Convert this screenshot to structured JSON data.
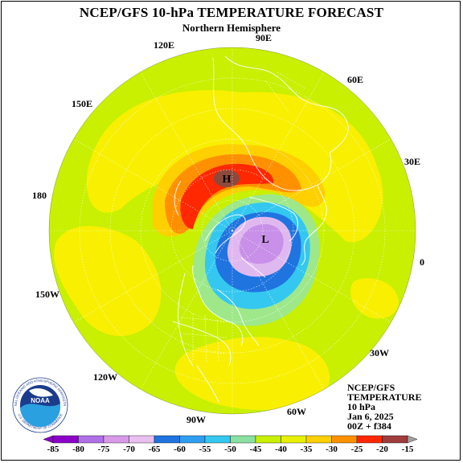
{
  "title": "NCEP/GFS 10-hPa TEMPERATURE FORECAST",
  "subtitle": "Northern Hemisphere",
  "longitude_labels": [
    {
      "id": "90E",
      "text": "90E"
    },
    {
      "id": "120E",
      "text": "120E"
    },
    {
      "id": "60E",
      "text": "60E"
    },
    {
      "id": "150E",
      "text": "150E"
    },
    {
      "id": "30E",
      "text": "30E"
    },
    {
      "id": "180",
      "text": "180"
    },
    {
      "id": "0",
      "text": "0"
    },
    {
      "id": "150W",
      "text": "150W"
    },
    {
      "id": "30W",
      "text": "30W"
    },
    {
      "id": "120W",
      "text": "120W"
    },
    {
      "id": "90W",
      "text": "90W"
    },
    {
      "id": "60W",
      "text": "60W"
    }
  ],
  "pressure_centers": {
    "high": "H",
    "low": "L"
  },
  "info": {
    "line1": "NCEP/GFS",
    "line2": "TEMPERATURE",
    "line3": "10 hPa",
    "line4": "Jan 6, 2025",
    "line5": "00Z + f384"
  },
  "logo": {
    "name": "NOAA",
    "ring_text_top": "NATIONAL OCEANIC AND ATMOSPHERIC ADMINISTRATION",
    "ring_text_bottom": "U.S. DEPARTMENT OF COMMERCE"
  },
  "colorbar": {
    "labels": [
      "-85",
      "-80",
      "-75",
      "-70",
      "-65",
      "-60",
      "-55",
      "-50",
      "-45",
      "-40",
      "-35",
      "-30",
      "-25",
      "-20",
      "-15"
    ],
    "colors": [
      "#8a00c8",
      "#b070e8",
      "#d89ae8",
      "#e8c0f0",
      "#1f74e0",
      "#2f9ef0",
      "#34c8f0",
      "#8ae0a0",
      "#c8f000",
      "#e8f000",
      "#ffd000",
      "#ff9000",
      "#ff2800",
      "#a03c3c"
    ],
    "end_color": "#a0a0a0"
  },
  "colors": {
    "field_base": "#c8f000",
    "yellow": "#f8f000",
    "light_orange": "#ffd000",
    "orange": "#ff9000",
    "red": "#ff2800",
    "brown": "#8c4a3c",
    "light_green": "#9ee88a",
    "cyan": "#34c8f0",
    "blue": "#1f74e0",
    "lavender": "#e0b8f0",
    "purple": "#c890e8"
  }
}
